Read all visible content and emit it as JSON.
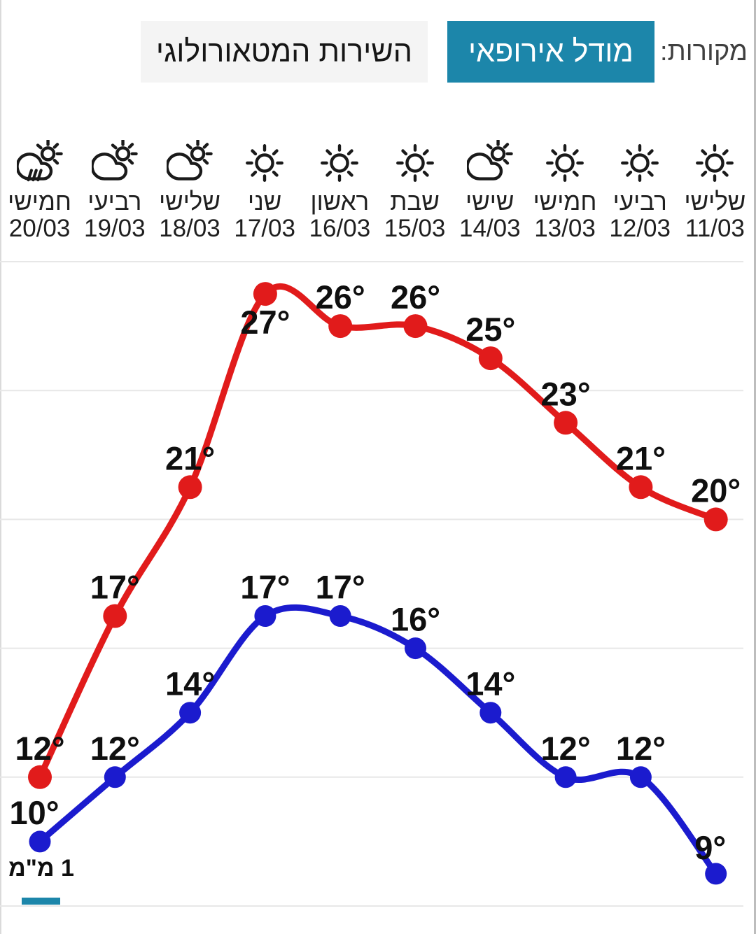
{
  "colors": {
    "accent_teal": "#1c86aa",
    "max_line_red": "#e11b1b",
    "min_line_blue": "#1b1bce",
    "gridline": "#e7e7e7",
    "label_text": "#0f0f0f"
  },
  "header": {
    "sources_label": "מקורות:",
    "tabs": [
      {
        "label": "מודל אירופאי",
        "active": true
      },
      {
        "label": "השירות המטאורולוגי",
        "active": false
      }
    ]
  },
  "days": [
    {
      "name": "שלישי",
      "date": "11/03",
      "icon": "sun"
    },
    {
      "name": "רביעי",
      "date": "12/03",
      "icon": "sun"
    },
    {
      "name": "חמישי",
      "date": "13/03",
      "icon": "sun"
    },
    {
      "name": "שישי",
      "date": "14/03",
      "icon": "sun-cloud"
    },
    {
      "name": "שבת",
      "date": "15/03",
      "icon": "sun"
    },
    {
      "name": "ראשון",
      "date": "16/03",
      "icon": "sun"
    },
    {
      "name": "שני",
      "date": "17/03",
      "icon": "sun"
    },
    {
      "name": "שלישי",
      "date": "18/03",
      "icon": "sun-cloud"
    },
    {
      "name": "רביעי",
      "date": "19/03",
      "icon": "sun-cloud"
    },
    {
      "name": "חמישי",
      "date": "20/03",
      "icon": "sun-cloud-rain"
    }
  ],
  "chart_data": {
    "type": "line",
    "direction": "rtl",
    "categories": [
      "11/03",
      "12/03",
      "13/03",
      "14/03",
      "15/03",
      "16/03",
      "17/03",
      "18/03",
      "19/03",
      "20/03"
    ],
    "series": [
      {
        "name": "max-temp",
        "color": "#e11b1b",
        "values": [
          20,
          21,
          23,
          25,
          26,
          26,
          27,
          21,
          17,
          12
        ]
      },
      {
        "name": "min-temp",
        "color": "#1b1bce",
        "values": [
          9,
          12,
          12,
          14,
          16,
          17,
          17,
          14,
          12,
          10
        ]
      }
    ],
    "unit_suffix": "°",
    "ylim": [
      8,
      28
    ],
    "grid_step_deg": 4,
    "grid": true,
    "legend": "none",
    "label_offsets": {
      "max-temp": {
        "6": [
          0,
          57
        ]
      },
      "min-temp": {
        "0": [
          -8,
          -21
        ],
        "9": [
          -8,
          -25
        ]
      }
    },
    "precipitation": [
      {
        "date": "20/03",
        "label": "1 מ\"מ",
        "value_mm": 1
      }
    ]
  }
}
